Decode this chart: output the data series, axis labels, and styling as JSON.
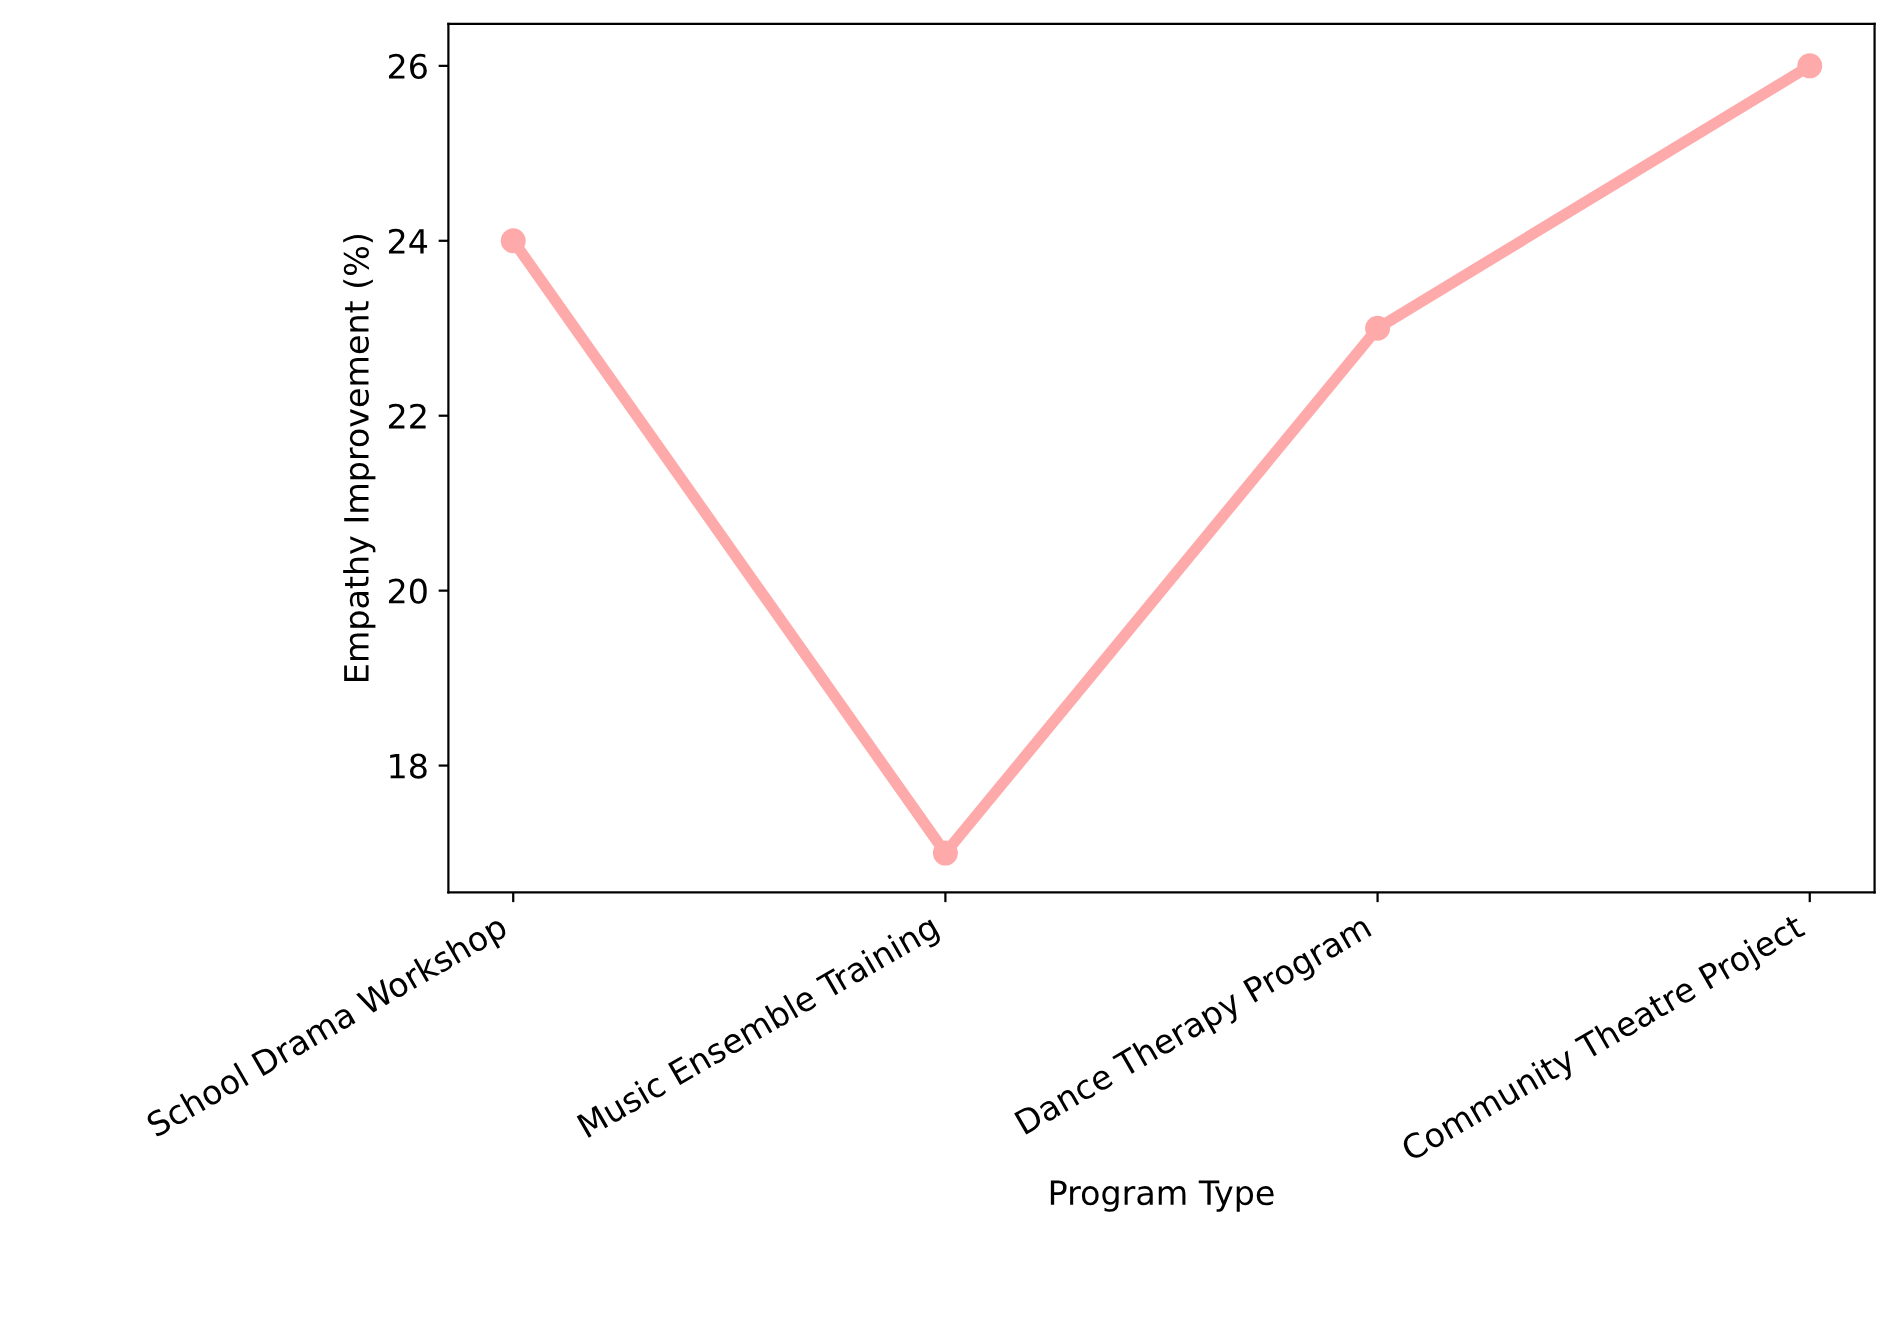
{
  "chart_data": {
    "type": "line",
    "xlabel": "Program Type",
    "ylabel": "Empathy Improvement (%)",
    "categories": [
      "School Drama Workshop",
      "Music Ensemble Training",
      "Dance Therapy Program",
      "Community Theatre Project"
    ],
    "series": [
      {
        "color": "#ffaaaa",
        "values": [
          24,
          17,
          23,
          26
        ]
      }
    ],
    "ylim": [
      16.55,
      26.48
    ],
    "yticks": [
      18,
      20,
      22,
      24,
      26
    ],
    "marker": "circle",
    "line_style": "solid",
    "grid": false,
    "legend": false
  }
}
